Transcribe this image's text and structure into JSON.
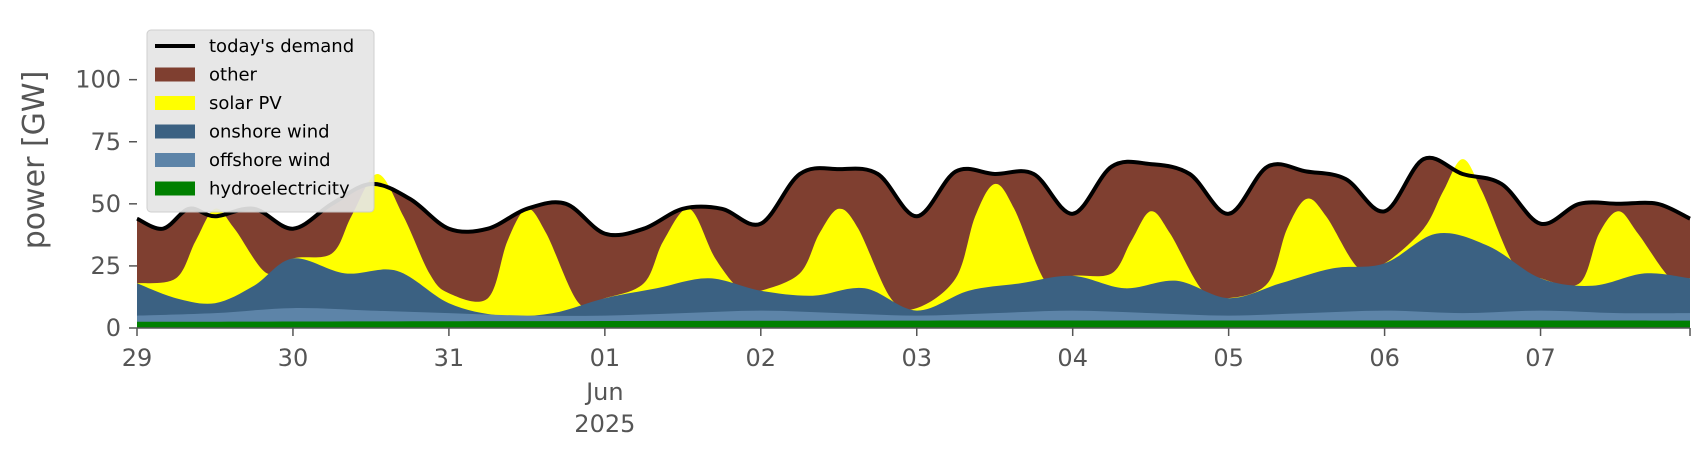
{
  "chart_data": {
    "type": "area",
    "ylabel": "power [GW]",
    "ylim": [
      0,
      120
    ],
    "xlim": [
      "2025-05-29",
      "2025-06-07T23:00"
    ],
    "grid": false,
    "legend_position": "upper-left",
    "y_ticks": [
      "0",
      "25",
      "50",
      "75",
      "100"
    ],
    "x_ticks": [
      {
        "date": "2025-05-29",
        "label": "29"
      },
      {
        "date": "2025-05-30",
        "label": "30"
      },
      {
        "date": "2025-05-31",
        "label": "31"
      },
      {
        "date": "2025-06-01",
        "label": "01",
        "sub1": "Jun",
        "sub2": "2025"
      },
      {
        "date": "2025-06-02",
        "label": "02"
      },
      {
        "date": "2025-06-03",
        "label": "03"
      },
      {
        "date": "2025-06-04",
        "label": "04"
      },
      {
        "date": "2025-06-05",
        "label": "05"
      },
      {
        "date": "2025-06-06",
        "label": "06"
      },
      {
        "date": "2025-06-07",
        "label": "07"
      }
    ],
    "stack_order": [
      "hydroelectricity",
      "offshore wind",
      "onshore wind",
      "solar PV",
      "other"
    ],
    "series": [
      {
        "name": "today's demand",
        "kind": "line",
        "color": "#000000",
        "points": [
          [
            "2025-05-29T00:00",
            44
          ],
          [
            "2025-05-29T04:00",
            40
          ],
          [
            "2025-05-29T08:00",
            48
          ],
          [
            "2025-05-29T12:00",
            45
          ],
          [
            "2025-05-29T18:00",
            48
          ],
          [
            "2025-05-30T00:00",
            40
          ],
          [
            "2025-05-30T06:00",
            50
          ],
          [
            "2025-05-30T12:00",
            58
          ],
          [
            "2025-05-30T18:00",
            52
          ],
          [
            "2025-05-31T00:00",
            40
          ],
          [
            "2025-05-31T06:00",
            40
          ],
          [
            "2025-05-31T12:00",
            48
          ],
          [
            "2025-05-31T18:00",
            50
          ],
          [
            "2025-06-01T00:00",
            38
          ],
          [
            "2025-06-01T06:00",
            40
          ],
          [
            "2025-06-01T12:00",
            48
          ],
          [
            "2025-06-01T18:00",
            48
          ],
          [
            "2025-06-02T00:00",
            42
          ],
          [
            "2025-06-02T06:00",
            62
          ],
          [
            "2025-06-02T12:00",
            64
          ],
          [
            "2025-06-02T18:00",
            62
          ],
          [
            "2025-06-03T00:00",
            45
          ],
          [
            "2025-06-03T06:00",
            63
          ],
          [
            "2025-06-03T12:00",
            62
          ],
          [
            "2025-06-03T18:00",
            62
          ],
          [
            "2025-06-04T00:00",
            46
          ],
          [
            "2025-06-04T06:00",
            65
          ],
          [
            "2025-06-04T12:00",
            66
          ],
          [
            "2025-06-04T18:00",
            62
          ],
          [
            "2025-06-05T00:00",
            46
          ],
          [
            "2025-06-05T06:00",
            65
          ],
          [
            "2025-06-05T12:00",
            63
          ],
          [
            "2025-06-05T18:00",
            60
          ],
          [
            "2025-06-06T00:00",
            47
          ],
          [
            "2025-06-06T06:00",
            68
          ],
          [
            "2025-06-06T12:00",
            62
          ],
          [
            "2025-06-06T18:00",
            58
          ],
          [
            "2025-06-07T00:00",
            42
          ],
          [
            "2025-06-07T06:00",
            50
          ],
          [
            "2025-06-07T12:00",
            50
          ],
          [
            "2025-06-07T18:00",
            50
          ],
          [
            "2025-06-07T23:00",
            44
          ]
        ]
      },
      {
        "name": "other",
        "kind": "area",
        "color": "#7f3f30",
        "points": [
          [
            "2025-05-29T00:00",
            44
          ],
          [
            "2025-05-29T04:00",
            40
          ],
          [
            "2025-05-29T08:00",
            48
          ],
          [
            "2025-05-29T12:00",
            45
          ],
          [
            "2025-05-29T18:00",
            48
          ],
          [
            "2025-05-30T00:00",
            40
          ],
          [
            "2025-05-30T06:00",
            50
          ],
          [
            "2025-05-30T12:00",
            58
          ],
          [
            "2025-05-30T18:00",
            52
          ],
          [
            "2025-05-31T00:00",
            40
          ],
          [
            "2025-05-31T06:00",
            40
          ],
          [
            "2025-05-31T12:00",
            48
          ],
          [
            "2025-05-31T18:00",
            50
          ],
          [
            "2025-06-01T00:00",
            38
          ],
          [
            "2025-06-01T06:00",
            40
          ],
          [
            "2025-06-01T12:00",
            48
          ],
          [
            "2025-06-01T18:00",
            48
          ],
          [
            "2025-06-02T00:00",
            42
          ],
          [
            "2025-06-02T06:00",
            62
          ],
          [
            "2025-06-02T12:00",
            64
          ],
          [
            "2025-06-02T18:00",
            62
          ],
          [
            "2025-06-03T00:00",
            45
          ],
          [
            "2025-06-03T06:00",
            63
          ],
          [
            "2025-06-03T12:00",
            62
          ],
          [
            "2025-06-03T18:00",
            62
          ],
          [
            "2025-06-04T00:00",
            46
          ],
          [
            "2025-06-04T06:00",
            65
          ],
          [
            "2025-06-04T12:00",
            66
          ],
          [
            "2025-06-04T18:00",
            62
          ],
          [
            "2025-06-05T00:00",
            46
          ],
          [
            "2025-06-05T06:00",
            65
          ],
          [
            "2025-06-05T12:00",
            63
          ],
          [
            "2025-06-05T18:00",
            60
          ],
          [
            "2025-06-06T00:00",
            47
          ],
          [
            "2025-06-06T06:00",
            68
          ],
          [
            "2025-06-06T12:00",
            62
          ],
          [
            "2025-06-06T18:00",
            58
          ],
          [
            "2025-06-07T00:00",
            42
          ],
          [
            "2025-06-07T06:00",
            50
          ],
          [
            "2025-06-07T12:00",
            50
          ],
          [
            "2025-06-07T18:00",
            50
          ],
          [
            "2025-06-07T23:00",
            44
          ]
        ]
      },
      {
        "name": "solar PV",
        "kind": "area",
        "color": "#ffff00",
        "points": [
          [
            "2025-05-29T00:00",
            18
          ],
          [
            "2025-05-29T06:00",
            20
          ],
          [
            "2025-05-29T09:00",
            35
          ],
          [
            "2025-05-29T12:00",
            48
          ],
          [
            "2025-05-29T15:00",
            40
          ],
          [
            "2025-05-29T20:00",
            22
          ],
          [
            "2025-05-30T00:00",
            28
          ],
          [
            "2025-05-30T06:00",
            30
          ],
          [
            "2025-05-30T09:00",
            45
          ],
          [
            "2025-05-30T13:00",
            62
          ],
          [
            "2025-05-30T17:00",
            45
          ],
          [
            "2025-05-30T21:00",
            22
          ],
          [
            "2025-05-31T00:00",
            14
          ],
          [
            "2025-05-31T06:00",
            12
          ],
          [
            "2025-05-31T09:00",
            35
          ],
          [
            "2025-05-31T12:00",
            48
          ],
          [
            "2025-05-31T15:00",
            38
          ],
          [
            "2025-05-31T20:00",
            10
          ],
          [
            "2025-06-01T00:00",
            12
          ],
          [
            "2025-06-01T06:00",
            18
          ],
          [
            "2025-06-01T09:00",
            35
          ],
          [
            "2025-06-01T13:00",
            48
          ],
          [
            "2025-06-01T17:00",
            28
          ],
          [
            "2025-06-01T21:00",
            15
          ],
          [
            "2025-06-02T00:00",
            15
          ],
          [
            "2025-06-02T06:00",
            22
          ],
          [
            "2025-06-02T09:00",
            38
          ],
          [
            "2025-06-02T12:00",
            48
          ],
          [
            "2025-06-02T15:00",
            40
          ],
          [
            "2025-06-02T20:00",
            12
          ],
          [
            "2025-06-03T00:00",
            8
          ],
          [
            "2025-06-03T06:00",
            20
          ],
          [
            "2025-06-03T09:00",
            45
          ],
          [
            "2025-06-03T12:00",
            58
          ],
          [
            "2025-06-03T15:00",
            48
          ],
          [
            "2025-06-03T20:00",
            18
          ],
          [
            "2025-06-04T00:00",
            21
          ],
          [
            "2025-06-04T06:00",
            22
          ],
          [
            "2025-06-04T09:00",
            35
          ],
          [
            "2025-06-04T12:00",
            47
          ],
          [
            "2025-06-04T15:00",
            38
          ],
          [
            "2025-06-04T20:00",
            15
          ],
          [
            "2025-06-05T00:00",
            12
          ],
          [
            "2025-06-05T06:00",
            18
          ],
          [
            "2025-06-05T09:00",
            40
          ],
          [
            "2025-06-05T12:00",
            52
          ],
          [
            "2025-06-05T15:00",
            45
          ],
          [
            "2025-06-05T20:00",
            24
          ],
          [
            "2025-06-06T00:00",
            26
          ],
          [
            "2025-06-06T06:00",
            40
          ],
          [
            "2025-06-06T09:00",
            55
          ],
          [
            "2025-06-06T12:00",
            68
          ],
          [
            "2025-06-06T15:00",
            55
          ],
          [
            "2025-06-06T20:00",
            25
          ],
          [
            "2025-06-07T00:00",
            20
          ],
          [
            "2025-06-07T06:00",
            18
          ],
          [
            "2025-06-07T09:00",
            38
          ],
          [
            "2025-06-07T12:00",
            47
          ],
          [
            "2025-06-07T15:00",
            38
          ],
          [
            "2025-06-07T20:00",
            20
          ],
          [
            "2025-06-07T23:00",
            20
          ]
        ]
      },
      {
        "name": "onshore wind",
        "kind": "area",
        "color": "#3b6182",
        "points": [
          [
            "2025-05-29T00:00",
            18
          ],
          [
            "2025-05-29T06:00",
            12
          ],
          [
            "2025-05-29T12:00",
            10
          ],
          [
            "2025-05-29T18:00",
            17
          ],
          [
            "2025-05-30T00:00",
            28
          ],
          [
            "2025-05-30T08:00",
            22
          ],
          [
            "2025-05-30T16:00",
            23
          ],
          [
            "2025-05-31T00:00",
            10
          ],
          [
            "2025-05-31T08:00",
            5
          ],
          [
            "2025-05-31T16:00",
            6
          ],
          [
            "2025-06-01T00:00",
            12
          ],
          [
            "2025-06-01T08:00",
            16
          ],
          [
            "2025-06-01T16:00",
            20
          ],
          [
            "2025-06-02T00:00",
            15
          ],
          [
            "2025-06-02T08:00",
            13
          ],
          [
            "2025-06-02T16:00",
            16
          ],
          [
            "2025-06-03T00:00",
            7
          ],
          [
            "2025-06-03T08:00",
            15
          ],
          [
            "2025-06-03T16:00",
            18
          ],
          [
            "2025-06-04T00:00",
            21
          ],
          [
            "2025-06-04T08:00",
            16
          ],
          [
            "2025-06-04T16:00",
            19
          ],
          [
            "2025-06-05T00:00",
            12
          ],
          [
            "2025-06-05T08:00",
            18
          ],
          [
            "2025-06-05T16:00",
            24
          ],
          [
            "2025-06-06T00:00",
            26
          ],
          [
            "2025-06-06T08:00",
            38
          ],
          [
            "2025-06-06T16:00",
            33
          ],
          [
            "2025-06-07T00:00",
            20
          ],
          [
            "2025-06-07T08:00",
            17
          ],
          [
            "2025-06-07T16:00",
            22
          ],
          [
            "2025-06-07T23:00",
            20
          ]
        ]
      },
      {
        "name": "offshore wind",
        "kind": "area",
        "color": "#5d84a8",
        "points": [
          [
            "2025-05-29T00:00",
            5
          ],
          [
            "2025-05-29T12:00",
            6
          ],
          [
            "2025-05-30T00:00",
            8
          ],
          [
            "2025-05-30T12:00",
            7
          ],
          [
            "2025-05-31T00:00",
            6
          ],
          [
            "2025-05-31T12:00",
            5
          ],
          [
            "2025-06-01T00:00",
            5
          ],
          [
            "2025-06-01T12:00",
            6
          ],
          [
            "2025-06-02T00:00",
            7
          ],
          [
            "2025-06-02T12:00",
            6
          ],
          [
            "2025-06-03T00:00",
            5
          ],
          [
            "2025-06-03T12:00",
            6
          ],
          [
            "2025-06-04T00:00",
            7
          ],
          [
            "2025-06-04T12:00",
            6
          ],
          [
            "2025-06-05T00:00",
            5
          ],
          [
            "2025-06-05T12:00",
            6
          ],
          [
            "2025-06-06T00:00",
            7
          ],
          [
            "2025-06-06T12:00",
            6
          ],
          [
            "2025-06-07T00:00",
            7
          ],
          [
            "2025-06-07T12:00",
            6
          ],
          [
            "2025-06-07T23:00",
            6
          ]
        ]
      },
      {
        "name": "hydroelectricity",
        "kind": "area",
        "color": "#008000",
        "points": [
          [
            "2025-05-29T00:00",
            2.5
          ],
          [
            "2025-06-03T00:00",
            3
          ],
          [
            "2025-06-07T23:00",
            3
          ]
        ]
      }
    ]
  }
}
